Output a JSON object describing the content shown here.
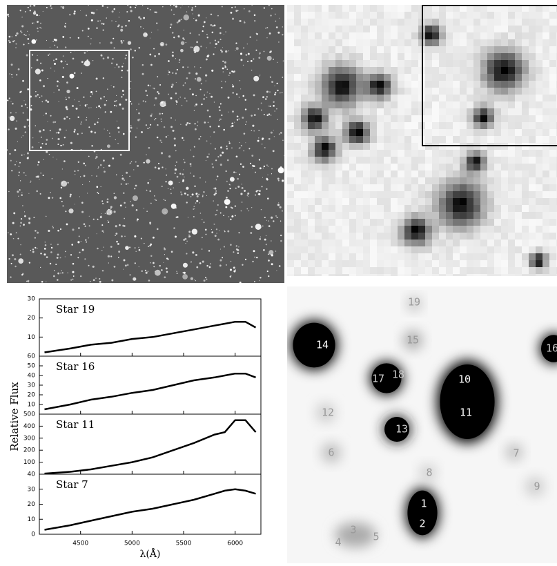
{
  "figure": {
    "xlabel": "λ(Å)",
    "ylabel": "Relative Flux"
  },
  "chart_data": [
    {
      "type": "line",
      "x": [
        4150,
        4400,
        4600,
        4800,
        5000,
        5200,
        5400,
        5600,
        5800,
        5900,
        6000,
        6100,
        6200
      ],
      "series": [
        {
          "name": "Star 19",
          "color": "#000000",
          "values": [
            2,
            4,
            6,
            7,
            9,
            10,
            12,
            14,
            16,
            17,
            18,
            18,
            15
          ]
        }
      ],
      "xlim": [
        4100,
        6250
      ],
      "ylim": [
        0,
        30
      ],
      "yticks": [
        10,
        20,
        30
      ]
    },
    {
      "type": "line",
      "x": [
        4150,
        4400,
        4600,
        4800,
        5000,
        5200,
        5400,
        5600,
        5800,
        5900,
        6000,
        6100,
        6200
      ],
      "series": [
        {
          "name": "Star 16",
          "color": "#000000",
          "values": [
            5,
            10,
            15,
            18,
            22,
            25,
            30,
            35,
            38,
            40,
            42,
            42,
            38
          ]
        }
      ],
      "xlim": [
        4100,
        6250
      ],
      "ylim": [
        0,
        60
      ],
      "yticks": [
        10,
        20,
        30,
        40,
        50,
        60
      ]
    },
    {
      "type": "line",
      "x": [
        4150,
        4400,
        4600,
        4800,
        5000,
        5200,
        5400,
        5600,
        5800,
        5900,
        6000,
        6100,
        6200
      ],
      "series": [
        {
          "name": "Star 11",
          "color": "#000000",
          "values": [
            5,
            20,
            40,
            70,
            100,
            140,
            200,
            260,
            330,
            350,
            450,
            450,
            350
          ]
        }
      ],
      "xlim": [
        4100,
        6250
      ],
      "ylim": [
        0,
        500
      ],
      "yticks": [
        100,
        200,
        300,
        400,
        500
      ]
    },
    {
      "type": "line",
      "x": [
        4150,
        4400,
        4600,
        4800,
        5000,
        5200,
        5400,
        5600,
        5800,
        5900,
        6000,
        6100,
        6200
      ],
      "series": [
        {
          "name": "Star 7",
          "color": "#000000",
          "values": [
            3,
            6,
            9,
            12,
            15,
            17,
            20,
            23,
            27,
            29,
            30,
            29,
            27
          ]
        }
      ],
      "xlim": [
        4100,
        6250
      ],
      "ylim": [
        0,
        40
      ],
      "yticks": [
        0,
        10,
        20,
        30,
        40
      ],
      "xticks": [
        4500,
        5000,
        5500,
        6000
      ]
    }
  ],
  "blob_labels": [
    "14",
    "19",
    "15",
    "17",
    "18",
    "16",
    "10",
    "11",
    "12",
    "13",
    "6",
    "8",
    "7",
    "9",
    "1",
    "2",
    "3",
    "4",
    "5"
  ]
}
